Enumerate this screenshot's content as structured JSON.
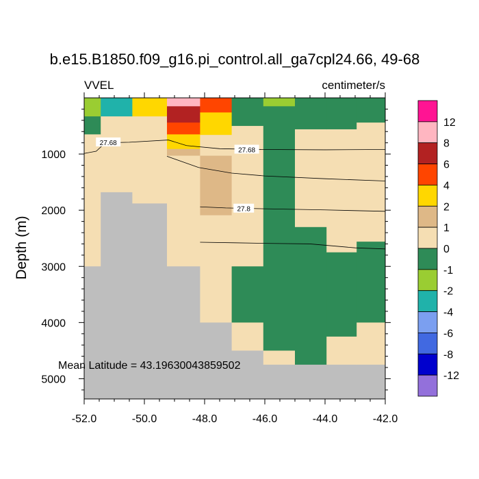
{
  "chart_data": {
    "type": "heatmap",
    "title": "b.e15.B1850.f09_g16.pi_control.all_ga7cpl24.66, 49-68",
    "variable": "VVEL",
    "units": "centimeter/s",
    "xlabel": "",
    "ylabel": "Depth (m)",
    "xlim": [
      -52.0,
      -42.0
    ],
    "ylim": [
      5360,
      0
    ],
    "x_ticks": [
      -52.0,
      -50.0,
      -48.0,
      -46.0,
      -44.0,
      -42.0
    ],
    "x_tick_labels": [
      "-52.0",
      "-50.0",
      "-48.0",
      "-46.0",
      "-44.0",
      "-42.0"
    ],
    "y_ticks": [
      1000,
      2000,
      3000,
      4000,
      5000
    ],
    "y_tick_labels": [
      "1000",
      "2000",
      "3000",
      "4000",
      "5000"
    ],
    "annotation": "Mean Latitude = 43.19630043859502",
    "colorbar": {
      "boundaries": [
        "12",
        "8",
        "6",
        "4",
        "2",
        "1",
        "0",
        "-1",
        "-2",
        "-4",
        "-6",
        "-8",
        "-12"
      ],
      "colors": [
        "#ff1493",
        "#ffb6c1",
        "#b22222",
        "#ff4500",
        "#ffd700",
        "#deb887",
        "#f5deb3",
        "#2e8b57",
        "#9acd32",
        "#20b2aa",
        "#7b9ff0",
        "#4169e1",
        "#0000cd",
        "#9370db"
      ]
    },
    "land_color": "#bebebe",
    "column_edges": [
      -52.0,
      -51.45,
      -50.4,
      -49.25,
      -48.15,
      -47.1,
      -46.05,
      -45.0,
      -43.95,
      -42.95,
      -42.0
    ],
    "columns": [
      {
        "cells": [
          [
            0,
            330,
            "#9acd32"
          ],
          [
            330,
            650,
            "#2e8b57"
          ],
          [
            650,
            3000,
            "#f5deb3"
          ],
          [
            3000,
            5360,
            "#bebebe"
          ]
        ]
      },
      {
        "cells": [
          [
            0,
            330,
            "#20b2aa"
          ],
          [
            330,
            1680,
            "#f5deb3"
          ],
          [
            1680,
            5360,
            "#bebebe"
          ]
        ]
      },
      {
        "cells": [
          [
            0,
            330,
            "#ffd700"
          ],
          [
            330,
            1880,
            "#f5deb3"
          ],
          [
            1880,
            5360,
            "#bebebe"
          ]
        ]
      },
      {
        "cells": [
          [
            0,
            150,
            "#ffb6c1"
          ],
          [
            150,
            440,
            "#b22222"
          ],
          [
            440,
            650,
            "#ff4500"
          ],
          [
            650,
            910,
            "#ffd700"
          ],
          [
            910,
            1030,
            "#deb887"
          ],
          [
            1030,
            3000,
            "#f5deb3"
          ],
          [
            3000,
            5360,
            "#bebebe"
          ]
        ]
      },
      {
        "cells": [
          [
            0,
            260,
            "#ff4500"
          ],
          [
            260,
            660,
            "#ffd700"
          ],
          [
            660,
            1030,
            "#f5deb3"
          ],
          [
            1030,
            2090,
            "#deb887"
          ],
          [
            2090,
            4000,
            "#f5deb3"
          ],
          [
            4000,
            5360,
            "#bebebe"
          ]
        ]
      },
      {
        "cells": [
          [
            0,
            500,
            "#2e8b57"
          ],
          [
            500,
            3000,
            "#f5deb3"
          ],
          [
            3000,
            4000,
            "#2e8b57"
          ],
          [
            4000,
            4500,
            "#f5deb3"
          ],
          [
            4500,
            5360,
            "#bebebe"
          ]
        ]
      },
      {
        "cells": [
          [
            0,
            150,
            "#9acd32"
          ],
          [
            150,
            4500,
            "#2e8b57"
          ],
          [
            4500,
            4750,
            "#f5deb3"
          ],
          [
            4750,
            5360,
            "#bebebe"
          ]
        ]
      },
      {
        "cells": [
          [
            0,
            560,
            "#2e8b57"
          ],
          [
            560,
            2300,
            "#f5deb3"
          ],
          [
            2300,
            4750,
            "#2e8b57"
          ],
          [
            4750,
            5360,
            "#bebebe"
          ]
        ]
      },
      {
        "cells": [
          [
            0,
            560,
            "#2e8b57"
          ],
          [
            560,
            2750,
            "#f5deb3"
          ],
          [
            2750,
            4250,
            "#2e8b57"
          ],
          [
            4250,
            4750,
            "#f5deb3"
          ],
          [
            4750,
            5360,
            "#bebebe"
          ]
        ]
      },
      {
        "cells": [
          [
            0,
            440,
            "#2e8b57"
          ],
          [
            440,
            2560,
            "#f5deb3"
          ],
          [
            2560,
            4000,
            "#2e8b57"
          ],
          [
            4000,
            4750,
            "#f5deb3"
          ],
          [
            4750,
            5360,
            "#bebebe"
          ]
        ]
      }
    ],
    "contours": [
      {
        "label": "27.68",
        "label_at": [
          [
            -51.2,
            790
          ],
          [
            -46.6,
            920
          ]
        ],
        "points": [
          [
            -52.0,
            990
          ],
          [
            -51.6,
            950
          ],
          [
            -51.3,
            800
          ],
          [
            -50.5,
            790
          ],
          [
            -49.2,
            750
          ],
          [
            -48.6,
            850
          ],
          [
            -47.5,
            905
          ],
          [
            -46.0,
            920
          ],
          [
            -44.0,
            925
          ],
          [
            -42.0,
            920
          ]
        ]
      },
      {
        "label": "",
        "label_at": [],
        "points": [
          [
            -49.25,
            1040
          ],
          [
            -48.2,
            1240
          ],
          [
            -47.1,
            1340
          ],
          [
            -46.0,
            1390
          ],
          [
            -44.0,
            1440
          ],
          [
            -42.0,
            1480
          ]
        ]
      },
      {
        "label": "27.8",
        "label_at": [
          [
            -46.7,
            1970
          ]
        ],
        "points": [
          [
            -48.15,
            1940
          ],
          [
            -47.3,
            1960
          ],
          [
            -46.0,
            1975
          ],
          [
            -44.0,
            1995
          ],
          [
            -42.0,
            2020
          ]
        ]
      },
      {
        "label": "",
        "label_at": [],
        "points": [
          [
            -48.15,
            2570
          ],
          [
            -47.0,
            2580
          ],
          [
            -46.0,
            2590
          ],
          [
            -44.5,
            2600
          ],
          [
            -43.0,
            2670
          ],
          [
            -42.0,
            2690
          ]
        ]
      }
    ]
  }
}
